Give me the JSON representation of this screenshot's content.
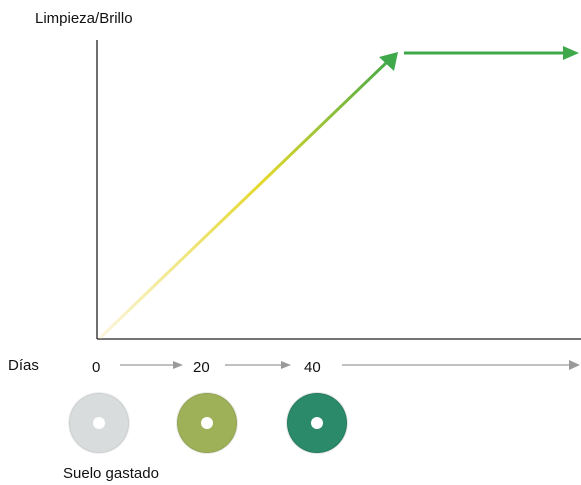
{
  "diagram": {
    "y_axis_label": "Limpieza/Brillo",
    "x_axis_label": "Días",
    "day_ticks": [
      "0",
      "20",
      "40"
    ],
    "floor_label": "Suelo gastado",
    "colors": {
      "curve_start": "#fbf6dc",
      "curve_mid": "#e4d829",
      "curve_end": "#3ea84a",
      "day_arrow": "#9a9a9a",
      "axis": "#222222"
    },
    "pads": [
      {
        "name": "white-pad",
        "color": "#d9dcdd"
      },
      {
        "name": "olive-green-pad",
        "color": "#9eb158"
      },
      {
        "name": "teal-green-pad",
        "color": "#2a8a6a"
      }
    ]
  }
}
